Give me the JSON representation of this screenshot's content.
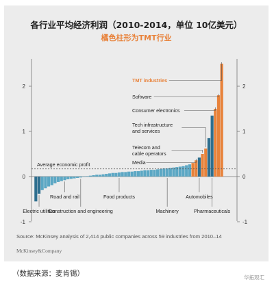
{
  "title": "各行业平均经济利润（2010-2014，单位 10亿美元）",
  "subtitle": "橘色柱形为TMT行业",
  "source": "Source: McKinsey analysis of 2,414 public companies across 59 industries from 2010–14",
  "brand": "McKinsey&Company",
  "caption": "（数据来源：麦肯锡）",
  "watermark": "华拓观汇",
  "colors": {
    "highlight": "#e8823a",
    "base": "#5ba7c4",
    "dark": "#2f6f8f",
    "text": "#222222"
  },
  "chart_data": {
    "type": "bar",
    "ylim": [
      -1,
      2.5
    ],
    "yticks": [
      -1,
      0,
      1,
      2
    ],
    "ytick_labels": [
      "-1",
      "0",
      "1",
      "2"
    ],
    "average_line": {
      "label": "Average economic profit",
      "value": 0.17
    },
    "values": [
      -0.55,
      -0.38,
      -0.3,
      -0.26,
      -0.22,
      -0.19,
      -0.15,
      -0.12,
      -0.1,
      -0.08,
      -0.06,
      -0.05,
      -0.04,
      -0.03,
      -0.02,
      -0.01,
      0.01,
      0.02,
      0.03,
      0.04,
      0.04,
      0.05,
      0.06,
      0.07,
      0.08,
      0.08,
      0.09,
      0.1,
      0.1,
      0.11,
      0.11,
      0.12,
      0.12,
      0.13,
      0.14,
      0.14,
      0.15,
      0.15,
      0.16,
      0.17,
      0.18,
      0.18,
      0.19,
      0.2,
      0.21,
      0.22,
      0.23,
      0.25,
      0.27,
      0.3,
      0.36,
      0.42,
      0.5,
      0.62,
      0.85,
      1.35,
      1.5,
      1.8,
      2.5
    ],
    "highlight_indices": [
      49,
      50,
      52,
      53,
      56,
      57,
      58
    ],
    "dark_indices": [
      0,
      1,
      51,
      54,
      55
    ],
    "series_labels": {
      "top": [
        {
          "text": "TMT industries",
          "bar": 58,
          "highlight": true
        },
        {
          "text": "Software",
          "bar": 57
        },
        {
          "text": "Consumer electronics",
          "bar": 56
        },
        {
          "text": "Tech infrastructure",
          "text2": "and services",
          "bar": 53
        },
        {
          "text": "Telecom and",
          "text2": "cable operators",
          "bar": 52
        },
        {
          "text": "Media",
          "bar": 50
        }
      ],
      "bottom": [
        {
          "text": "Electric utilities",
          "bar": 1
        },
        {
          "text": "Road and rail",
          "bar": 9
        },
        {
          "text": "Construction and engineering",
          "bar": 14
        },
        {
          "text": "Food products",
          "bar": 26
        },
        {
          "text": "Machinery",
          "bar": 41
        },
        {
          "text": "Automobiles",
          "bar": 51
        },
        {
          "text": "Pharmaceuticals",
          "bar": 55
        }
      ]
    }
  }
}
